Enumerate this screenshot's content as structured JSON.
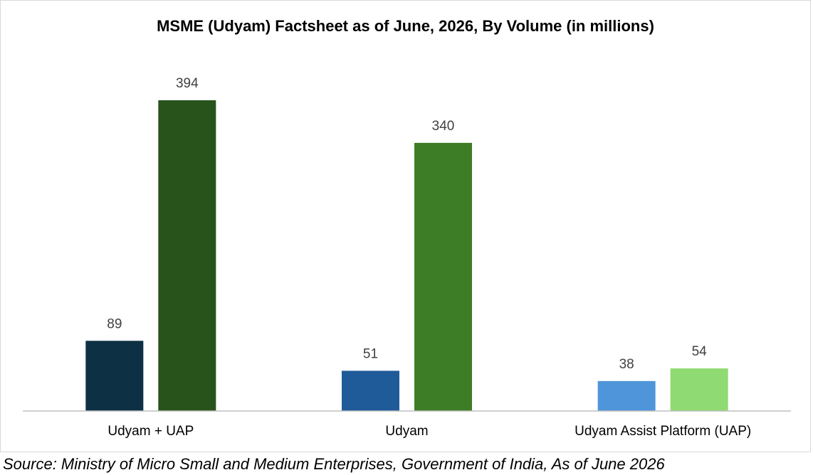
{
  "chart_data": {
    "type": "bar",
    "title": "MSME (Udyam) Factsheet as of June, 2026, By Volume (in millions)",
    "categories": [
      "Udyam + UAP",
      "Udyam",
      "Udyam Assist Platform (UAP)"
    ],
    "bars": [
      [
        {
          "value": 89,
          "label": "89",
          "color": "#0d3044"
        },
        {
          "value": 394,
          "label": "394",
          "color": "#28531b"
        }
      ],
      [
        {
          "value": 51,
          "label": "51",
          "color": "#1f5b99"
        },
        {
          "value": 340,
          "label": "340",
          "color": "#3d7d26"
        }
      ],
      [
        {
          "value": 38,
          "label": "38",
          "color": "#4f95d9"
        },
        {
          "value": 54,
          "label": "54",
          "color": "#8fda72"
        }
      ]
    ],
    "ylim": [
      0,
      400
    ],
    "grid": false,
    "legend": "none"
  },
  "source": "Source: Ministry of Micro Small and Medium Enterprises, Government of India, As of June 2026"
}
